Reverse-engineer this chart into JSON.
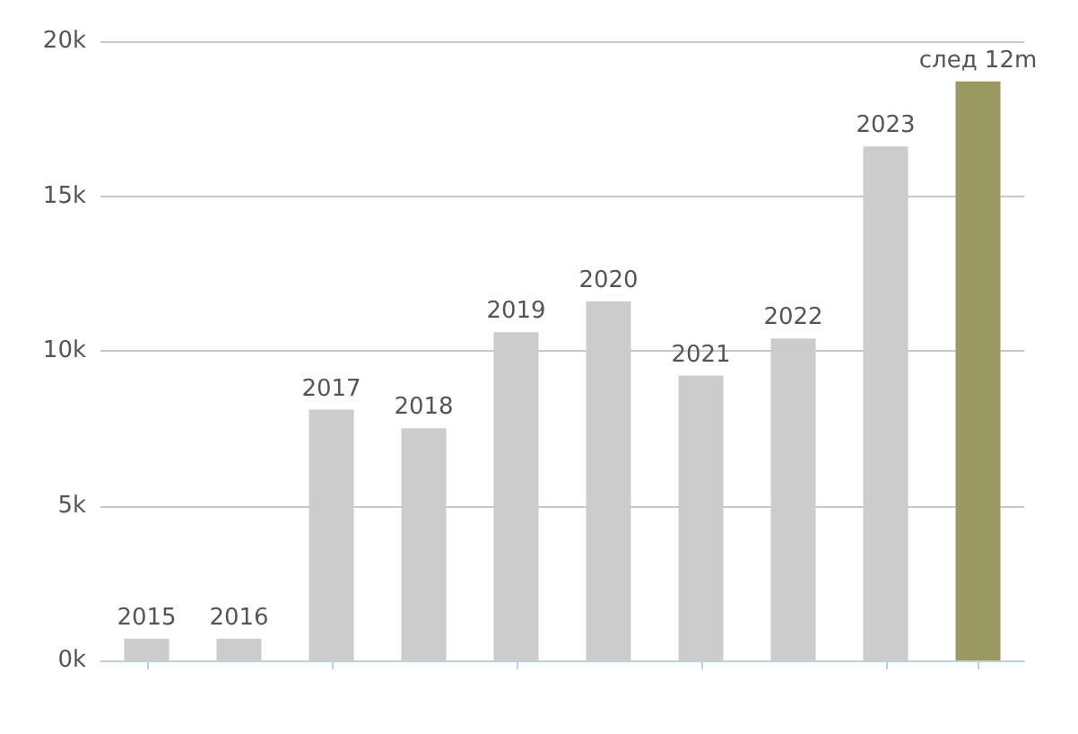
{
  "chart_data": {
    "type": "bar",
    "categories": [
      "2015",
      "2016",
      "2017",
      "2018",
      "2019",
      "2020",
      "2021",
      "2022",
      "2023",
      "след 12m"
    ],
    "values": [
      700,
      700,
      8100,
      7500,
      10600,
      11600,
      9200,
      10400,
      16600,
      18700
    ],
    "colors": [
      "#cccccc",
      "#cccccc",
      "#cccccc",
      "#cccccc",
      "#cccccc",
      "#cccccc",
      "#cccccc",
      "#cccccc",
      "#cccccc",
      "#999960"
    ],
    "ylim": [
      0,
      20000
    ],
    "yticks": [
      {
        "value": 0,
        "label": "0k"
      },
      {
        "value": 5000,
        "label": "5k"
      },
      {
        "value": 10000,
        "label": "10k"
      },
      {
        "value": 15000,
        "label": "15k"
      },
      {
        "value": 20000,
        "label": "20k"
      }
    ],
    "grid": "y",
    "tick_labels": "y"
  }
}
